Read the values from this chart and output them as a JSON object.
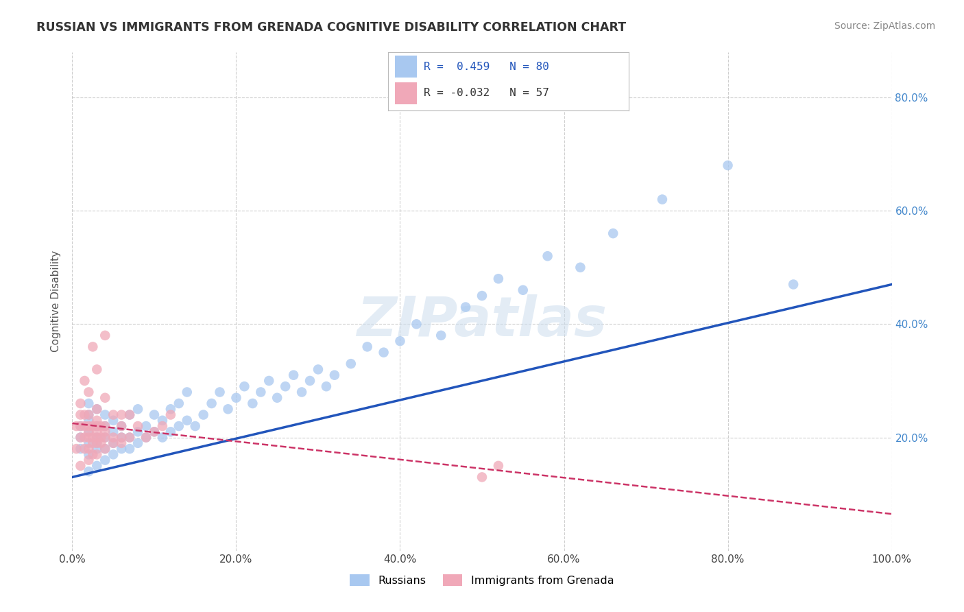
{
  "title": "RUSSIAN VS IMMIGRANTS FROM GRENADA COGNITIVE DISABILITY CORRELATION CHART",
  "source": "Source: ZipAtlas.com",
  "ylabel": "Cognitive Disability",
  "watermark": "ZIPatlas",
  "legend_r_russian": "R =  0.459",
  "legend_n_russian": "N = 80",
  "legend_r_grenada": "R = -0.032",
  "legend_n_grenada": "N = 57",
  "russian_color": "#a8c8f0",
  "grenada_color": "#f0a8b8",
  "russian_line_color": "#2255bb",
  "grenada_line_color": "#cc3366",
  "background_color": "#ffffff",
  "grid_color": "#bbbbbb",
  "xlim": [
    0,
    1.0
  ],
  "ylim": [
    0,
    0.88
  ],
  "xtick_labels": [
    "0.0%",
    "20.0%",
    "40.0%",
    "60.0%",
    "80.0%",
    "100.0%"
  ],
  "xtick_vals": [
    0.0,
    0.2,
    0.4,
    0.6,
    0.8,
    1.0
  ],
  "ytick_labels": [
    "20.0%",
    "40.0%",
    "60.0%",
    "80.0%"
  ],
  "ytick_vals": [
    0.2,
    0.4,
    0.6,
    0.8
  ],
  "russians_x": [
    0.01,
    0.01,
    0.01,
    0.02,
    0.02,
    0.02,
    0.02,
    0.02,
    0.02,
    0.02,
    0.03,
    0.03,
    0.03,
    0.03,
    0.03,
    0.03,
    0.04,
    0.04,
    0.04,
    0.04,
    0.04,
    0.05,
    0.05,
    0.05,
    0.05,
    0.06,
    0.06,
    0.06,
    0.07,
    0.07,
    0.07,
    0.08,
    0.08,
    0.08,
    0.09,
    0.09,
    0.1,
    0.1,
    0.11,
    0.11,
    0.12,
    0.12,
    0.13,
    0.13,
    0.14,
    0.14,
    0.15,
    0.16,
    0.17,
    0.18,
    0.19,
    0.2,
    0.21,
    0.22,
    0.23,
    0.24,
    0.25,
    0.26,
    0.27,
    0.28,
    0.29,
    0.3,
    0.31,
    0.32,
    0.34,
    0.36,
    0.38,
    0.4,
    0.42,
    0.45,
    0.48,
    0.5,
    0.52,
    0.55,
    0.58,
    0.62,
    0.66,
    0.72,
    0.8,
    0.88
  ],
  "russians_y": [
    0.18,
    0.2,
    0.22,
    0.14,
    0.17,
    0.19,
    0.21,
    0.23,
    0.24,
    0.26,
    0.15,
    0.18,
    0.19,
    0.2,
    0.22,
    0.25,
    0.16,
    0.18,
    0.2,
    0.22,
    0.24,
    0.17,
    0.19,
    0.21,
    0.23,
    0.18,
    0.2,
    0.22,
    0.18,
    0.2,
    0.24,
    0.19,
    0.21,
    0.25,
    0.2,
    0.22,
    0.21,
    0.24,
    0.2,
    0.23,
    0.21,
    0.25,
    0.22,
    0.26,
    0.23,
    0.28,
    0.22,
    0.24,
    0.26,
    0.28,
    0.25,
    0.27,
    0.29,
    0.26,
    0.28,
    0.3,
    0.27,
    0.29,
    0.31,
    0.28,
    0.3,
    0.32,
    0.29,
    0.31,
    0.33,
    0.36,
    0.35,
    0.37,
    0.4,
    0.38,
    0.43,
    0.45,
    0.48,
    0.46,
    0.52,
    0.5,
    0.56,
    0.62,
    0.68,
    0.47
  ],
  "grenada_x": [
    0.005,
    0.005,
    0.01,
    0.01,
    0.01,
    0.01,
    0.01,
    0.015,
    0.015,
    0.015,
    0.015,
    0.015,
    0.02,
    0.02,
    0.02,
    0.02,
    0.02,
    0.02,
    0.02,
    0.025,
    0.025,
    0.025,
    0.025,
    0.025,
    0.03,
    0.03,
    0.03,
    0.03,
    0.03,
    0.03,
    0.03,
    0.03,
    0.035,
    0.035,
    0.035,
    0.04,
    0.04,
    0.04,
    0.04,
    0.04,
    0.04,
    0.05,
    0.05,
    0.05,
    0.06,
    0.06,
    0.06,
    0.06,
    0.07,
    0.07,
    0.08,
    0.09,
    0.1,
    0.11,
    0.12,
    0.5,
    0.52
  ],
  "grenada_y": [
    0.18,
    0.22,
    0.15,
    0.2,
    0.22,
    0.24,
    0.26,
    0.18,
    0.2,
    0.22,
    0.24,
    0.3,
    0.16,
    0.18,
    0.2,
    0.21,
    0.22,
    0.24,
    0.28,
    0.17,
    0.19,
    0.2,
    0.22,
    0.36,
    0.17,
    0.19,
    0.2,
    0.21,
    0.22,
    0.23,
    0.25,
    0.32,
    0.19,
    0.2,
    0.22,
    0.18,
    0.2,
    0.21,
    0.22,
    0.27,
    0.38,
    0.19,
    0.2,
    0.24,
    0.19,
    0.2,
    0.22,
    0.24,
    0.2,
    0.24,
    0.22,
    0.2,
    0.21,
    0.22,
    0.24,
    0.13,
    0.15
  ]
}
